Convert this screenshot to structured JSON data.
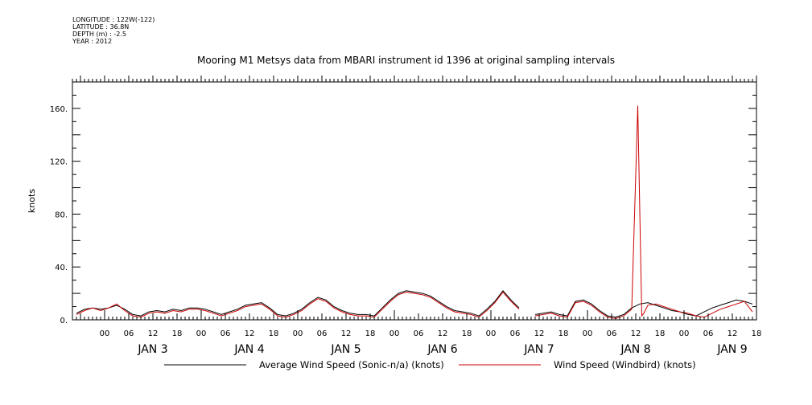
{
  "meta": {
    "longitude": "LONGITUDE : 122W(-122)",
    "latitude": "LATITUDE : 36.8N",
    "depth": "DEPTH (m) : -2.5",
    "year": "YEAR : 2012"
  },
  "chart_data": {
    "type": "line",
    "title": "Mooring M1 Metsys data from MBARI instrument id 1396 at original sampling intervals",
    "ylabel": "knots",
    "xlabel": "",
    "ylim": [
      0,
      180
    ],
    "xlim_hours": [
      -8,
      162
    ],
    "y_ticks": [
      "0.",
      "40.",
      "80.",
      "120.",
      "160."
    ],
    "hour_ticks": [
      "00",
      "06",
      "12",
      "18",
      "00",
      "06",
      "12",
      "18",
      "00",
      "06",
      "12",
      "18",
      "00",
      "06",
      "12",
      "18",
      "00",
      "06",
      "12",
      "18",
      "00",
      "06",
      "12",
      "18",
      "00",
      "06",
      "12",
      "18"
    ],
    "day_labels": [
      "JAN  3",
      "JAN  4",
      "JAN  5",
      "JAN  6",
      "JAN  7",
      "JAN  8",
      "JAN  9"
    ],
    "grid": false,
    "legend_position": "bottom",
    "colors": {
      "average": "#000000",
      "windbird": "#cc0000"
    },
    "series": [
      {
        "name": "Average Wind Speed (Sonic-n/a) (knots)",
        "key": "average",
        "x": [
          -7,
          -5,
          -3,
          -1,
          1,
          3,
          5,
          7,
          9,
          11,
          13,
          15,
          17,
          19,
          21,
          23,
          25,
          27,
          29,
          31,
          33,
          35,
          37,
          39,
          41,
          43,
          45,
          47,
          49,
          51,
          53,
          55,
          57,
          59,
          61,
          63,
          65,
          67,
          69,
          71,
          73,
          75,
          77,
          79,
          81,
          83,
          85,
          87,
          89,
          91,
          93,
          95,
          97,
          99,
          101,
          103,
          105,
          107,
          109,
          111,
          113,
          115,
          117,
          119,
          121,
          123,
          125,
          127,
          129,
          131,
          133,
          135,
          137,
          139,
          141,
          143,
          145,
          147,
          149,
          151,
          153,
          155,
          157,
          159,
          161
        ],
        "y": [
          5,
          8,
          9,
          8,
          9,
          11,
          8,
          4,
          3,
          6,
          7,
          6,
          8,
          7,
          9,
          9,
          8,
          6,
          4,
          6,
          8,
          11,
          12,
          13,
          9,
          4,
          3,
          5,
          8,
          13,
          17,
          15,
          10,
          7,
          5,
          4,
          4,
          3,
          9,
          15,
          20,
          22,
          21,
          20,
          18,
          14,
          10,
          7,
          6,
          5,
          3,
          8,
          14,
          22,
          15,
          9,
          null,
          4,
          5,
          6,
          4,
          3,
          14,
          15,
          12,
          7,
          3,
          2,
          4,
          9,
          12,
          13,
          11,
          9,
          7,
          6,
          4,
          3,
          6,
          9,
          11,
          13,
          15,
          14,
          12
        ]
      },
      {
        "name": "Wind Speed (Windbird) (knots)",
        "key": "windbird",
        "x": [
          -7,
          -5,
          -3,
          -1,
          1,
          3,
          5,
          7,
          9,
          11,
          13,
          15,
          17,
          19,
          21,
          23,
          25,
          27,
          29,
          31,
          33,
          35,
          37,
          39,
          41,
          43,
          45,
          47,
          49,
          51,
          53,
          55,
          57,
          59,
          61,
          63,
          65,
          67,
          69,
          71,
          73,
          75,
          77,
          79,
          81,
          83,
          85,
          87,
          89,
          91,
          93,
          95,
          97,
          99,
          101,
          103,
          105,
          107,
          109,
          111,
          113,
          115,
          117,
          119,
          121,
          123,
          125,
          127,
          129,
          131,
          132.5,
          133,
          133.5,
          134,
          135,
          137,
          139,
          141,
          143,
          145,
          147,
          149,
          151,
          153,
          155,
          157,
          159,
          161
        ],
        "y": [
          4,
          7,
          9,
          7,
          9,
          12,
          7,
          3,
          2,
          5,
          6,
          5,
          7,
          6,
          8,
          8,
          7,
          5,
          3,
          5,
          7,
          10,
          11,
          12,
          8,
          3,
          2,
          4,
          7,
          12,
          16,
          14,
          9,
          6,
          4,
          3,
          3,
          2,
          8,
          14,
          19,
          21,
          20,
          19,
          17,
          13,
          9,
          6,
          5,
          4,
          2,
          7,
          13,
          21,
          14,
          8,
          null,
          3,
          4,
          5,
          3,
          2,
          13,
          14,
          11,
          6,
          2,
          1,
          3,
          8,
          162,
          82,
          3,
          5,
          11,
          12,
          10,
          8,
          6,
          5,
          3,
          2,
          5,
          8,
          10,
          12,
          14,
          6
        ]
      }
    ]
  }
}
